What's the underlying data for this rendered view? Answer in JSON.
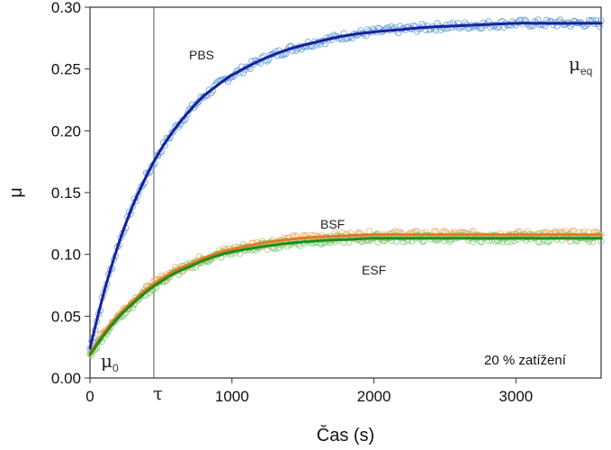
{
  "chart_data": {
    "type": "line",
    "xlabel": "Čas (s)",
    "ylabel": "μ",
    "xlim": [
      0,
      3600
    ],
    "ylim": [
      0,
      0.3
    ],
    "x_ticks": [
      0,
      1000,
      2000,
      3000
    ],
    "y_ticks": [
      0.0,
      0.05,
      0.1,
      0.15,
      0.2,
      0.25,
      0.3
    ],
    "y_tick_labels": [
      "0.00",
      "0.05",
      "0.10",
      "0.15",
      "0.20",
      "0.25",
      "0.30"
    ],
    "grid": false,
    "legend": "none",
    "series": [
      {
        "name": "PBS",
        "color": "#1a1f9c",
        "marker_color": "#5b9bd5",
        "x": [
          0,
          100,
          200,
          300,
          400,
          500,
          600,
          700,
          800,
          900,
          1000,
          1200,
          1400,
          1600,
          1800,
          2000,
          2200,
          2400,
          2600,
          2800,
          3000,
          3200,
          3400,
          3600
        ],
        "y": [
          0.024,
          0.07,
          0.108,
          0.139,
          0.164,
          0.185,
          0.202,
          0.216,
          0.228,
          0.237,
          0.245,
          0.257,
          0.266,
          0.272,
          0.277,
          0.28,
          0.282,
          0.284,
          0.285,
          0.286,
          0.287,
          0.287,
          0.287,
          0.287
        ]
      },
      {
        "name": "BSF",
        "color": "#e07b20",
        "marker_color": "#f0a860",
        "x": [
          0,
          100,
          200,
          300,
          400,
          500,
          600,
          700,
          800,
          900,
          1000,
          1200,
          1400,
          1600,
          1800,
          2000,
          2200,
          2400,
          2600,
          2800,
          3000,
          3200,
          3400,
          3600
        ],
        "y": [
          0.02,
          0.037,
          0.051,
          0.062,
          0.072,
          0.08,
          0.087,
          0.092,
          0.097,
          0.101,
          0.104,
          0.109,
          0.112,
          0.114,
          0.115,
          0.116,
          0.116,
          0.116,
          0.116,
          0.116,
          0.116,
          0.116,
          0.116,
          0.116
        ]
      },
      {
        "name": "ESF",
        "color": "#1e8c1e",
        "marker_color": "#7acc7a",
        "x": [
          0,
          100,
          200,
          300,
          400,
          500,
          600,
          700,
          800,
          900,
          1000,
          1200,
          1400,
          1600,
          1800,
          2000,
          2200,
          2400,
          2600,
          2800,
          3000,
          3200,
          3400,
          3600
        ],
        "y": [
          0.019,
          0.035,
          0.049,
          0.06,
          0.07,
          0.078,
          0.085,
          0.09,
          0.095,
          0.099,
          0.102,
          0.106,
          0.109,
          0.111,
          0.112,
          0.113,
          0.113,
          0.113,
          0.113,
          0.113,
          0.113,
          0.113,
          0.113,
          0.113
        ]
      }
    ],
    "vline": {
      "x": 450,
      "label": "τ"
    },
    "annotations": {
      "pbs": "PBS",
      "bsf": "BSF",
      "esf": "ESF",
      "mu0_main": "μ",
      "mu0_sub": "0",
      "mueq_main": "μ",
      "mueq_sub": "eq",
      "note": "20 % zatížení"
    }
  }
}
